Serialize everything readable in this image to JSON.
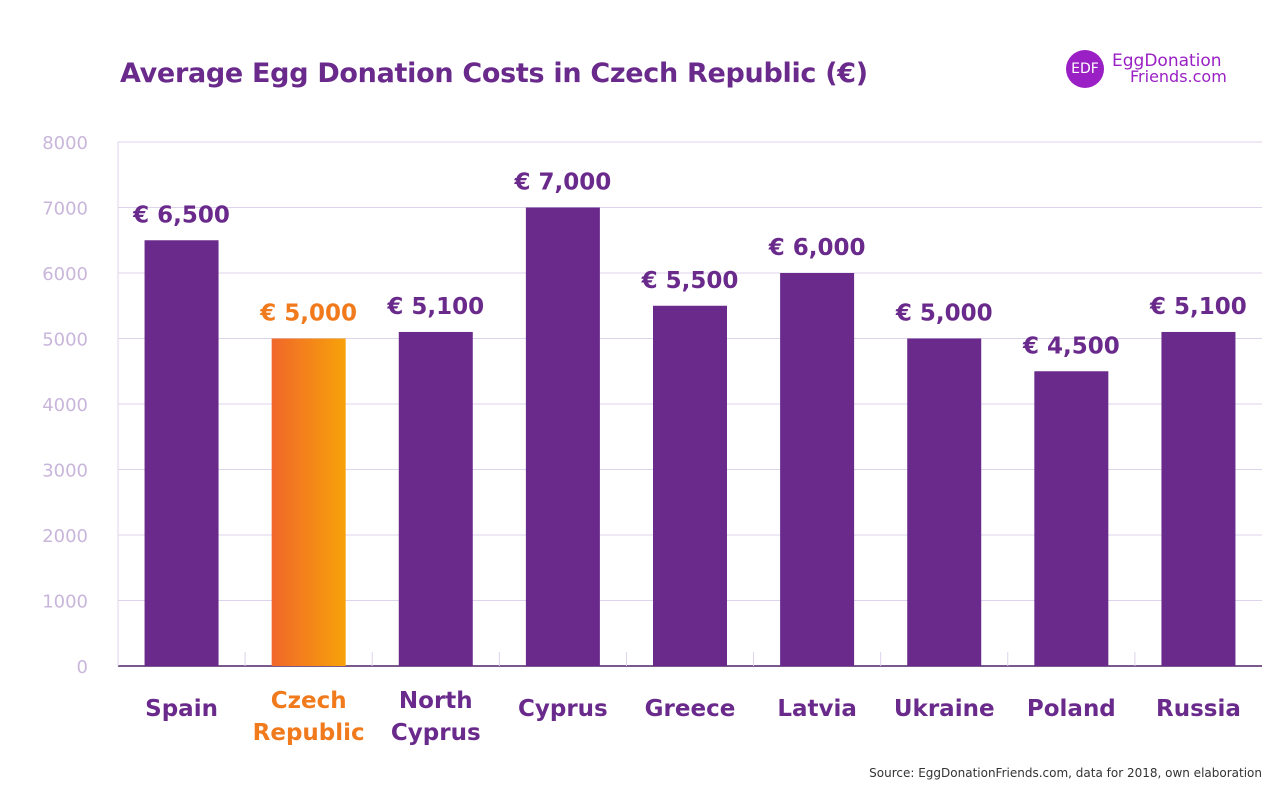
{
  "header": {
    "title": "Average Egg Donation Costs in Czech Republic (€)"
  },
  "logo": {
    "badge": "EDF",
    "line1": "EggDonation",
    "line2": "Friends.com"
  },
  "footer": {
    "source": "Source: EggDonationFriends.com, data for 2018, own elaboration"
  },
  "colors": {
    "bar": "#6a2a8c",
    "highlight_start": "#f0672a",
    "highlight_end": "#f7a20a",
    "highlight_text": "#f07a1c",
    "label": "#6a2a8c",
    "grid": "#ddd3ea",
    "axis": "#7a5a8c"
  },
  "chart_data": {
    "type": "bar",
    "title": "Average Egg Donation Costs in Czech Republic (€)",
    "xlabel": "",
    "ylabel": "",
    "ylim": [
      0,
      8000
    ],
    "yticks": [
      "0",
      "1000",
      "2000",
      "3000",
      "4000",
      "5000",
      "6000",
      "7000",
      "8000"
    ],
    "grid": true,
    "categories": [
      [
        "Spain"
      ],
      [
        "Czech",
        "Republic"
      ],
      [
        "North",
        "Cyprus"
      ],
      [
        "Cyprus"
      ],
      [
        "Greece"
      ],
      [
        "Latvia"
      ],
      [
        "Ukraine"
      ],
      [
        "Poland"
      ],
      [
        "Russia"
      ]
    ],
    "values": [
      6500,
      5000,
      5100,
      7000,
      5500,
      6000,
      5000,
      4500,
      5100
    ],
    "value_labels": [
      "€ 6,500",
      "€ 5,000",
      "€ 5,100",
      "€ 7,000",
      "€ 5,500",
      "€ 6,000",
      "€ 5,000",
      "€ 4,500",
      "€ 5,100"
    ],
    "highlight_index": 1
  }
}
